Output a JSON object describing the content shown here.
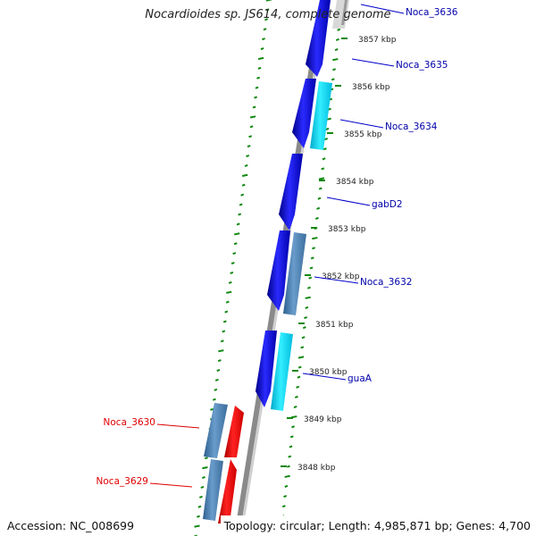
{
  "title": "Nocardioides sp. JS614, complete genome",
  "accession": "Accession: NC_008699",
  "topology": "Topology: circular; Length: 4,985,871 bp; Genes: 4,700",
  "ticks": [
    {
      "label": "3857 kbp"
    },
    {
      "label": "3856 kbp"
    },
    {
      "label": "3855 kbp"
    },
    {
      "label": "3854 kbp"
    },
    {
      "label": "3853 kbp"
    },
    {
      "label": "3852 kbp"
    },
    {
      "label": "3851 kbp"
    },
    {
      "label": "3850 kbp"
    },
    {
      "label": "3849 kbp"
    },
    {
      "label": "3848 kbp"
    }
  ],
  "genes": [
    {
      "name": "Noca_3636",
      "color": "#000099"
    },
    {
      "name": "Noca_3635",
      "color": "#000099"
    },
    {
      "name": "Noca_3634",
      "color": "#000099"
    },
    {
      "name": "gabD2",
      "color": "#000099"
    },
    {
      "name": "Noca_3632",
      "color": "#000099"
    },
    {
      "name": "guaA",
      "color": "#000099"
    },
    {
      "name": "Noca_3630",
      "color": "#cc0000"
    },
    {
      "name": "Noca_3629",
      "color": "#cc0000"
    }
  ],
  "colors": {
    "forward_gene": "#0000ee",
    "forward_gene_alt": "#00e0ee",
    "reverse_gene": "#ee0000",
    "gray_gene": "#4a7fb0",
    "backbone": "#888888",
    "dotted_ring": "#118811"
  }
}
